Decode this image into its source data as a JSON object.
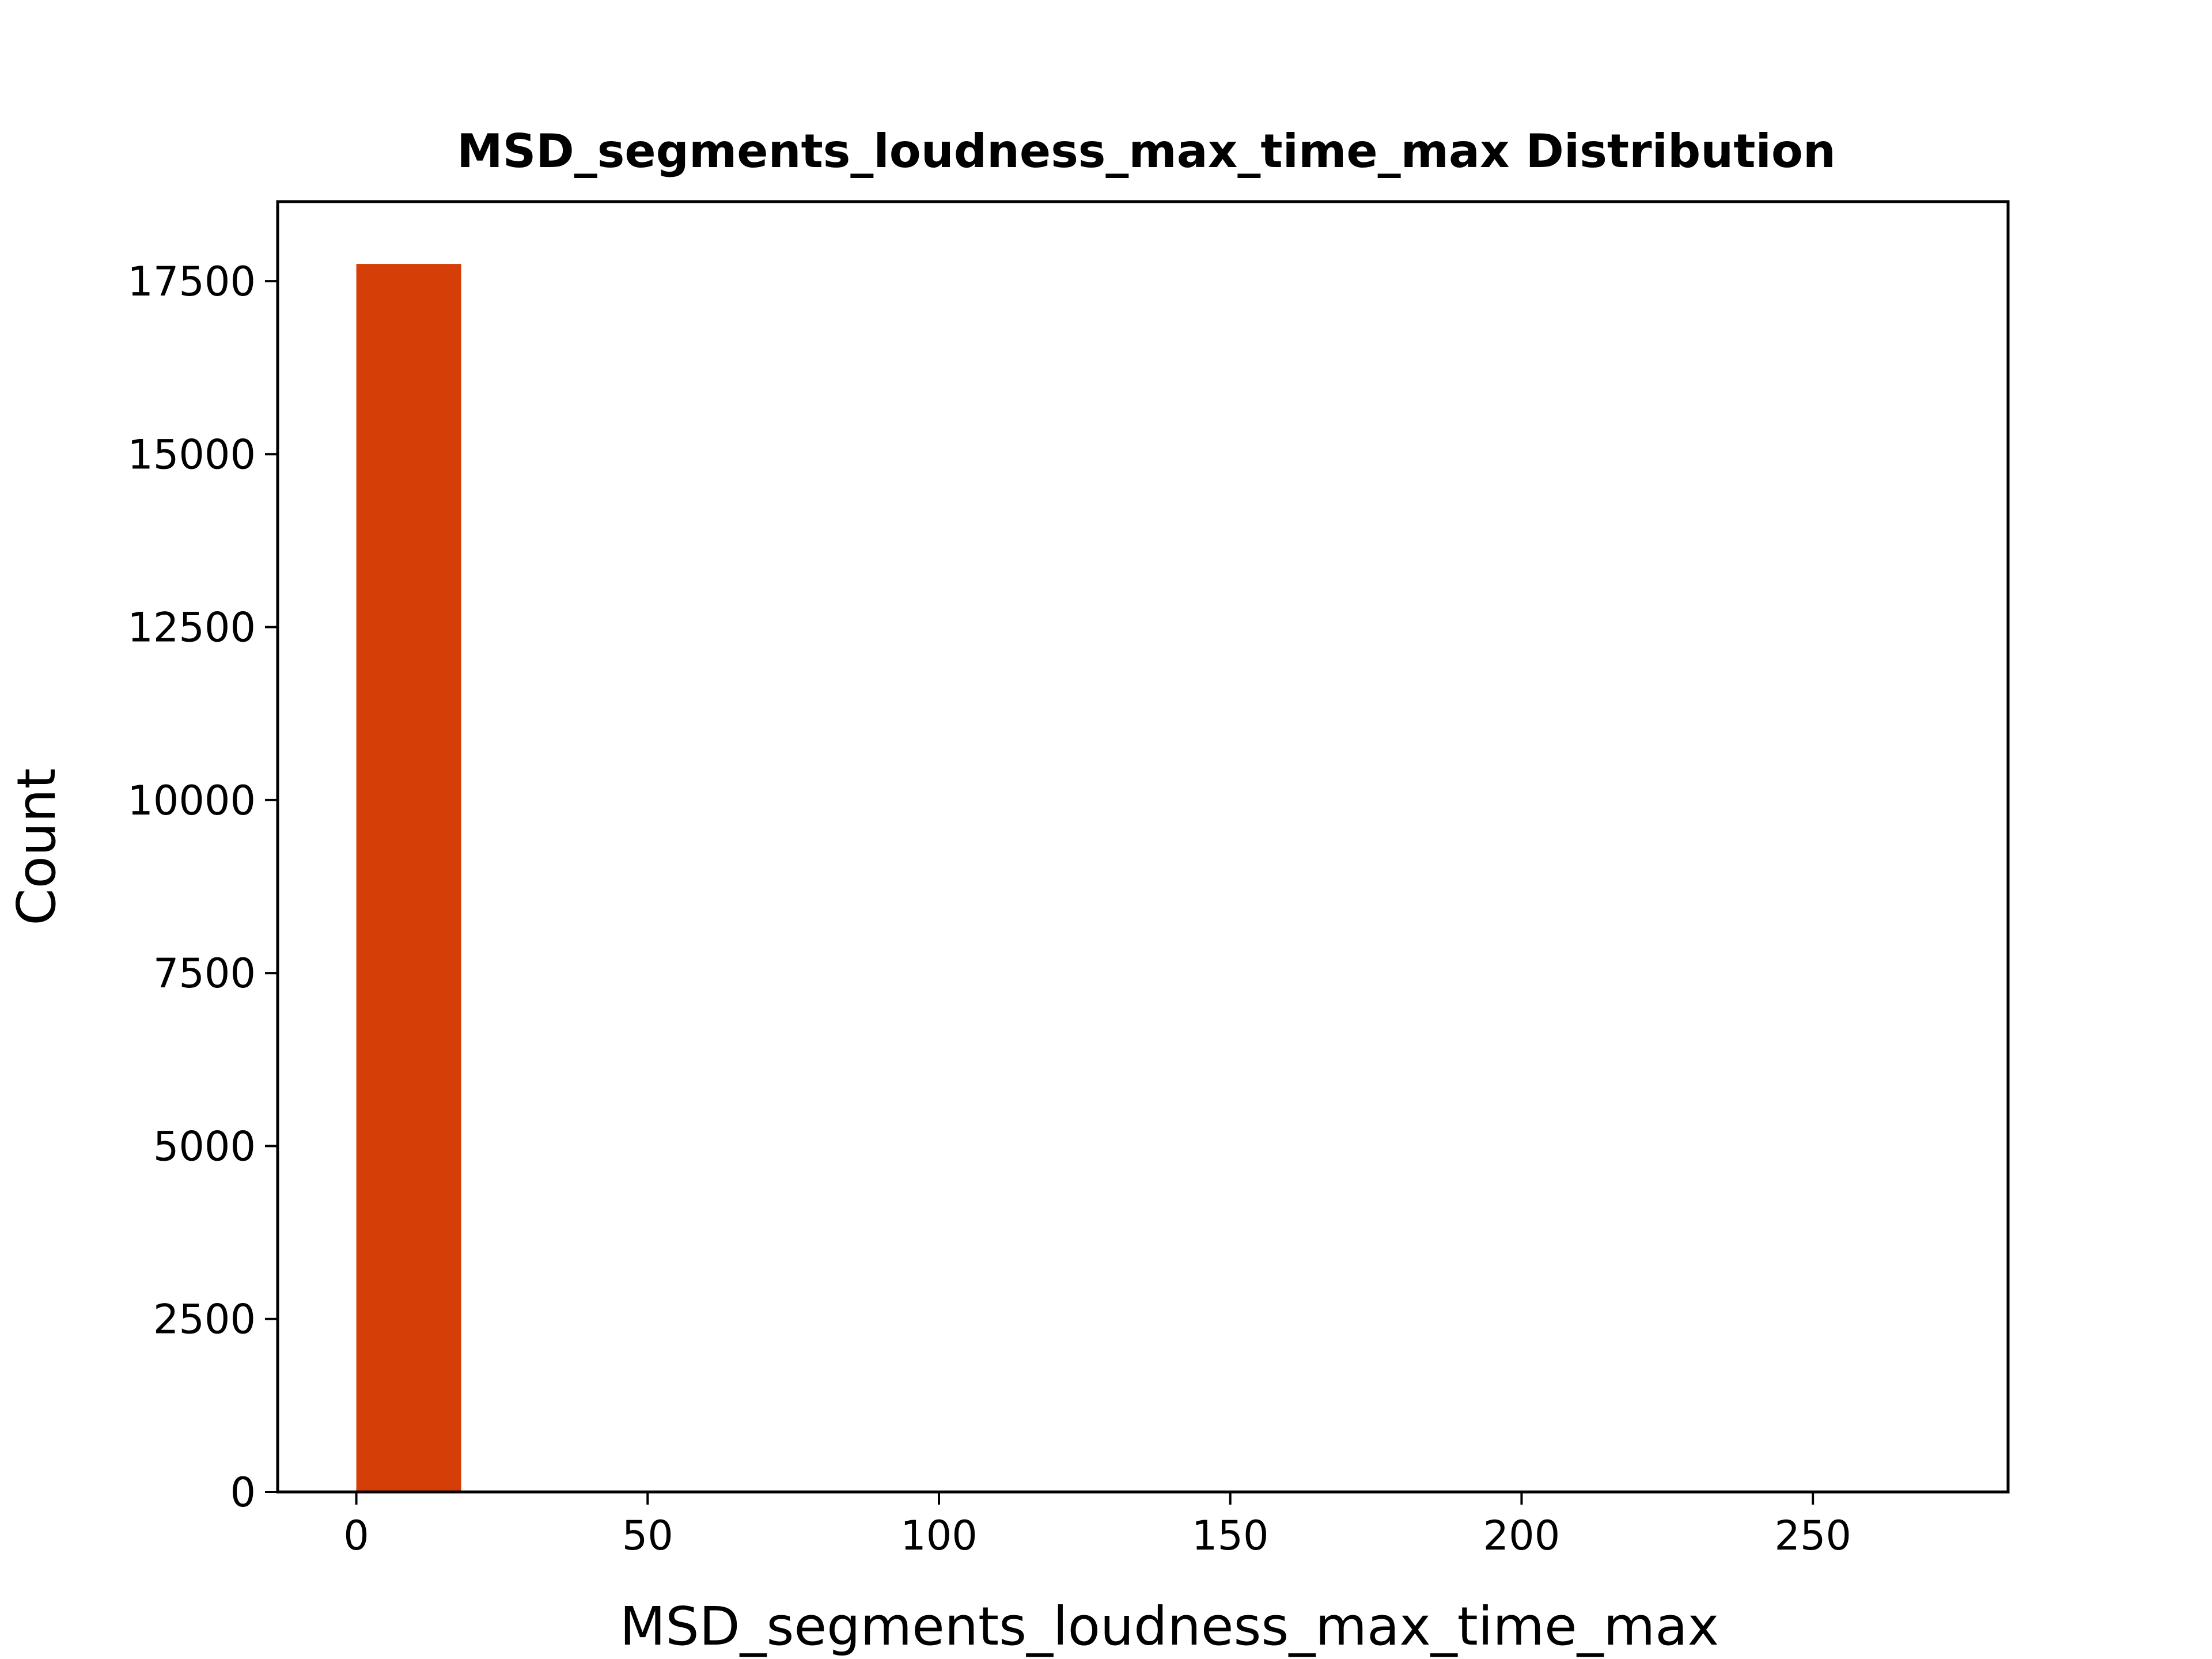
{
  "chart_data": {
    "type": "bar",
    "title": "MSD_segments_loudness_max_time_max Distribution",
    "xlabel": "MSD_segments_loudness_max_time_max",
    "ylabel": "Count",
    "bar_color": "#d63e08",
    "xlim": [
      -13.5,
      283.5
    ],
    "ylim": [
      0,
      18650
    ],
    "xticks": [
      0,
      50,
      100,
      150,
      200,
      250
    ],
    "yticks": [
      0,
      2500,
      5000,
      7500,
      10000,
      12500,
      15000,
      17500
    ],
    "bins": [
      {
        "x0": 0,
        "x1": 18,
        "count": 17750
      }
    ],
    "grid": false,
    "legend": "none"
  }
}
